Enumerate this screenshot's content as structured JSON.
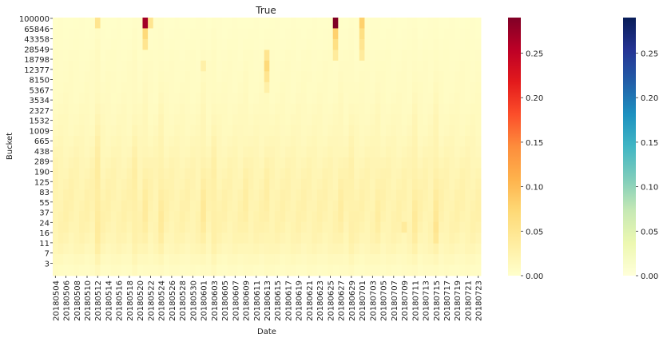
{
  "chart_data": {
    "type": "heatmap",
    "title": "True",
    "xlabel": "Date",
    "ylabel": "Bucket",
    "x_tick_labels": [
      "20180504",
      "20180506",
      "20180508",
      "20180510",
      "20180512",
      "20180514",
      "20180516",
      "20180518",
      "20180520",
      "20180522",
      "20180524",
      "20180526",
      "20180528",
      "20180530",
      "20180601",
      "20180603",
      "20180605",
      "20180607",
      "20180609",
      "20180611",
      "20180613",
      "20180615",
      "20180617",
      "20180619",
      "20180621",
      "20180623",
      "20180625",
      "20180627",
      "20180629",
      "20180701",
      "20180703",
      "20180705",
      "20180707",
      "20180709",
      "20180711",
      "20180713",
      "20180715",
      "20180717",
      "20180719",
      "20180721",
      "20180723"
    ],
    "y_tick_labels": [
      "100000",
      "65846",
      "43358",
      "28549",
      "18798",
      "12377",
      "8150",
      "5367",
      "3534",
      "2327",
      "1532",
      "1009",
      "665",
      "438",
      "289",
      "190",
      "125",
      "83",
      "55",
      "37",
      "24",
      "16",
      "11",
      "7",
      "3"
    ],
    "n_columns": 81,
    "n_rows": 24,
    "base_by_row": [
      0.004,
      0.005,
      0.006,
      0.008,
      0.009,
      0.01,
      0.011,
      0.012,
      0.014,
      0.016,
      0.018,
      0.021,
      0.024,
      0.028,
      0.031,
      0.033,
      0.035,
      0.036,
      0.036,
      0.034,
      0.03,
      0.024,
      0.016,
      0.01
    ],
    "column_intensity": [
      {
        "column": 8,
        "value": 0.8
      },
      {
        "column": 15,
        "value": 0.55
      },
      {
        "column": 17,
        "value": 0.5
      },
      {
        "column": 20,
        "value": 0.6
      },
      {
        "column": 28,
        "value": 0.6
      },
      {
        "column": 30,
        "value": 0.55
      },
      {
        "column": 36,
        "value": 0.4
      },
      {
        "column": 40,
        "value": 0.4
      },
      {
        "column": 54,
        "value": 0.4
      },
      {
        "column": 56,
        "value": 0.45
      },
      {
        "column": 61,
        "value": 0.4
      },
      {
        "column": 68,
        "value": 0.6
      },
      {
        "column": 72,
        "value": 0.65
      }
    ],
    "hotspots": [
      {
        "column": 17,
        "row": 0,
        "value": 0.27
      },
      {
        "column": 17,
        "row": 1,
        "value": 0.07
      },
      {
        "column": 17,
        "row": 2,
        "value": 0.05
      },
      {
        "column": 18,
        "row": 0,
        "value": 0.05
      },
      {
        "column": 53,
        "row": 0,
        "value": 0.29
      },
      {
        "column": 53,
        "row": 1,
        "value": 0.08
      },
      {
        "column": 53,
        "row": 2,
        "value": 0.06
      },
      {
        "column": 53,
        "row": 3,
        "value": 0.04
      },
      {
        "column": 58,
        "row": 0,
        "value": 0.08
      },
      {
        "column": 58,
        "row": 1,
        "value": 0.06
      },
      {
        "column": 58,
        "row": 2,
        "value": 0.05
      },
      {
        "column": 58,
        "row": 3,
        "value": 0.04
      },
      {
        "column": 40,
        "row": 3,
        "value": 0.05
      },
      {
        "column": 40,
        "row": 4,
        "value": 0.07
      },
      {
        "column": 40,
        "row": 5,
        "value": 0.05
      },
      {
        "column": 40,
        "row": 6,
        "value": 0.03
      },
      {
        "column": 8,
        "row": 0,
        "value": 0.05
      },
      {
        "column": 28,
        "row": 4,
        "value": 0.03
      },
      {
        "column": 72,
        "row": 19,
        "value": 0.05
      },
      {
        "column": 72,
        "row": 18,
        "value": 0.045
      },
      {
        "column": 72,
        "row": 20,
        "value": 0.045
      },
      {
        "column": 66,
        "row": 19,
        "value": 0.04
      }
    ],
    "colorbars": [
      {
        "colormap": "YlOrRd",
        "min": 0.0,
        "max": 0.29,
        "ticks": [
          0.0,
          0.05,
          0.1,
          0.15,
          0.2,
          0.25
        ],
        "tick_labels": [
          "0.00",
          "0.05",
          "0.10",
          "0.15",
          "0.20",
          "0.25"
        ]
      },
      {
        "colormap": "YlGnBu",
        "min": 0.0,
        "max": 0.29,
        "ticks": [
          0.0,
          0.05,
          0.1,
          0.15,
          0.2,
          0.25
        ],
        "tick_labels": [
          "0.00",
          "0.05",
          "0.10",
          "0.15",
          "0.20",
          "0.25"
        ]
      }
    ],
    "colormap_stops": {
      "YlOrRd": [
        "#ffffcc",
        "#ffeda0",
        "#fed976",
        "#feb24c",
        "#fd8d3c",
        "#fc4e2a",
        "#e31a1c",
        "#bd0026",
        "#800026"
      ],
      "YlGnBu": [
        "#ffffd9",
        "#edf8b1",
        "#c7e9b4",
        "#7fcdbb",
        "#41b6c4",
        "#1d91c0",
        "#225ea8",
        "#253494",
        "#081d58"
      ]
    },
    "grid": false,
    "legend": "none"
  }
}
